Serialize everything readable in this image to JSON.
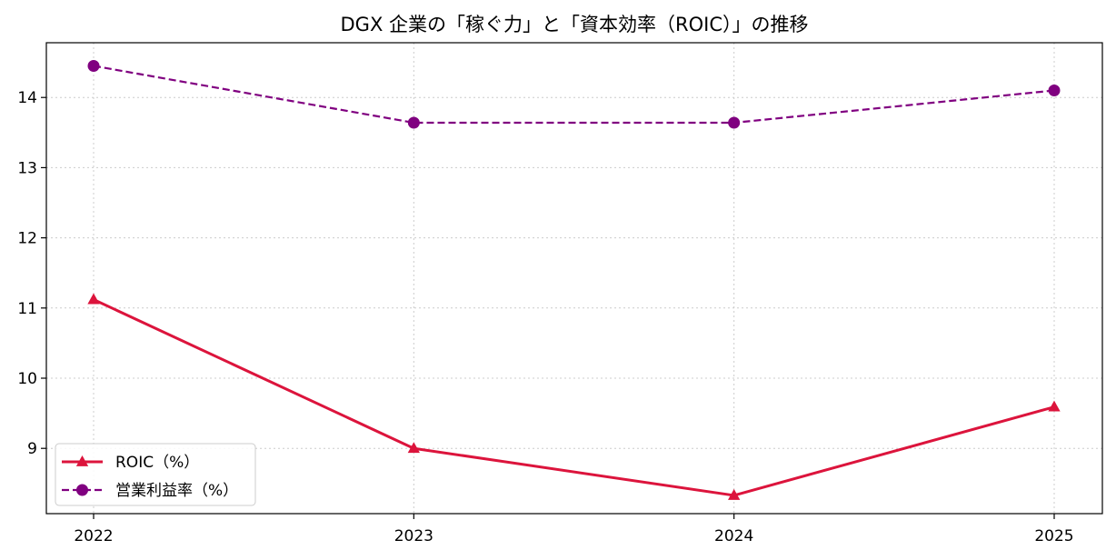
{
  "chart_data": {
    "type": "line",
    "title": "DGX 企業の「稼ぐ力」と「資本効率（ROIC）」の推移",
    "xlabel": "",
    "ylabel": "",
    "categories": [
      "2022",
      "2023",
      "2024",
      "2025"
    ],
    "yticks": [
      "9",
      "10",
      "11",
      "12",
      "13",
      "14"
    ],
    "ylim": [
      8.07,
      14.78
    ],
    "grid": true,
    "legend_position": "lower-left",
    "series": [
      {
        "name": "ROIC（%）",
        "values": [
          11.12,
          9.0,
          8.33,
          9.59
        ],
        "color": "#dc143c",
        "line_style": "solid",
        "marker": "triangle"
      },
      {
        "name": "営業利益率（%）",
        "values": [
          14.45,
          13.64,
          13.64,
          14.1
        ],
        "color": "#800080",
        "line_style": "dashed",
        "marker": "circle"
      }
    ]
  }
}
